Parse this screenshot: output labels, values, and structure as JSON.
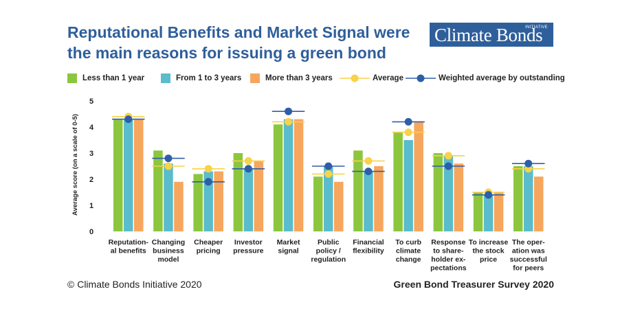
{
  "header": {
    "title": "Reputational Benefits and Market Signal were the main reasons for issuing a green bond",
    "logo_text": "Climate Bonds",
    "logo_small": "INITIATIVE"
  },
  "footer": {
    "copyright": "© Climate Bonds Initiative 2020",
    "source": "Green Bond Treasurer Survey 2020"
  },
  "colors": {
    "less_1": "#8cc63f",
    "one_3": "#5bbccb",
    "more_3": "#f7a65d",
    "average": "#f8d248",
    "weighted": "#2e5ea8",
    "title": "#2f5f9b"
  },
  "chart_data": {
    "type": "bar",
    "title": "Reputational Benefits and Market Signal were the main reasons for issuing a green bond",
    "ylabel": "Average score (on a scale of 0-5)",
    "ylim": [
      0,
      5
    ],
    "yticks": [
      0,
      1,
      2,
      3,
      4,
      5
    ],
    "grid": false,
    "legend_position": "top",
    "categories": [
      [
        "Reputation-",
        "al benefits"
      ],
      [
        "Changing",
        "business",
        "model"
      ],
      [
        "Cheaper",
        "pricing"
      ],
      [
        "Investor",
        "pressure"
      ],
      [
        "Market",
        "signal"
      ],
      [
        "Public",
        "policy /",
        "regulation"
      ],
      [
        "Financial",
        "flexibility"
      ],
      [
        "To curb",
        "climate",
        "change"
      ],
      [
        "Response",
        "to share-",
        "holder ex-",
        "pectations"
      ],
      [
        "To increase",
        "the stock",
        "price"
      ],
      [
        "The oper-",
        "ation was",
        "successful",
        "for peers"
      ]
    ],
    "series": [
      {
        "name": "Less than 1 year",
        "kind": "bar",
        "values": [
          4.3,
          3.1,
          2.2,
          3.0,
          4.1,
          2.1,
          3.1,
          3.8,
          3.0,
          1.5,
          2.5
        ]
      },
      {
        "name": "From 1 to 3 years",
        "kind": "bar",
        "values": [
          4.3,
          2.6,
          2.3,
          2.4,
          4.3,
          2.5,
          2.3,
          3.5,
          2.9,
          1.4,
          2.5
        ]
      },
      {
        "name": "More than 3 years",
        "kind": "bar",
        "values": [
          4.3,
          1.9,
          2.3,
          2.7,
          4.3,
          1.9,
          2.5,
          4.2,
          2.6,
          1.5,
          2.1
        ]
      },
      {
        "name": "Average",
        "kind": "marker",
        "values": [
          4.4,
          2.5,
          2.4,
          2.7,
          4.2,
          2.2,
          2.7,
          3.8,
          2.9,
          1.5,
          2.4
        ]
      },
      {
        "name": "Weighted average by outstanding",
        "kind": "marker",
        "values": [
          4.3,
          2.8,
          1.9,
          2.4,
          4.6,
          2.5,
          2.3,
          4.2,
          2.5,
          1.4,
          2.6
        ]
      }
    ]
  }
}
